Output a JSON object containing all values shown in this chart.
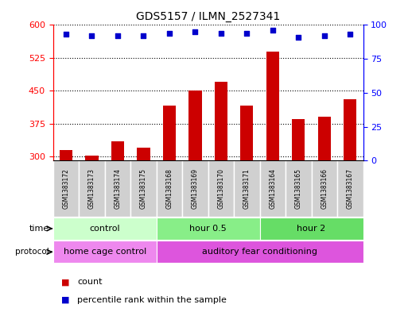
{
  "title": "GDS5157 / ILMN_2527341",
  "samples": [
    "GSM1383172",
    "GSM1383173",
    "GSM1383174",
    "GSM1383175",
    "GSM1383168",
    "GSM1383169",
    "GSM1383170",
    "GSM1383171",
    "GSM1383164",
    "GSM1383165",
    "GSM1383166",
    "GSM1383167"
  ],
  "counts": [
    315,
    302,
    335,
    320,
    415,
    450,
    470,
    415,
    540,
    385,
    390,
    430
  ],
  "percentile_ranks": [
    93,
    92,
    92,
    92,
    94,
    95,
    94,
    94,
    96,
    91,
    92,
    93
  ],
  "ylim_left": [
    290,
    600
  ],
  "ylim_right": [
    0,
    100
  ],
  "yticks_left": [
    300,
    375,
    450,
    525,
    600
  ],
  "yticks_right": [
    0,
    25,
    50,
    75,
    100
  ],
  "bar_color": "#cc0000",
  "dot_color": "#0000cc",
  "time_groups": [
    {
      "label": "control",
      "start": 0,
      "end": 4,
      "color": "#ccffcc"
    },
    {
      "label": "hour 0.5",
      "start": 4,
      "end": 8,
      "color": "#88ee88"
    },
    {
      "label": "hour 2",
      "start": 8,
      "end": 12,
      "color": "#66dd66"
    }
  ],
  "protocol_groups": [
    {
      "label": "home cage control",
      "start": 0,
      "end": 4,
      "color": "#ee88ee"
    },
    {
      "label": "auditory fear conditioning",
      "start": 4,
      "end": 12,
      "color": "#dd55dd"
    }
  ],
  "sample_box_color": "#d0d0d0",
  "bg_color": "#ffffff",
  "bar_width": 0.5
}
